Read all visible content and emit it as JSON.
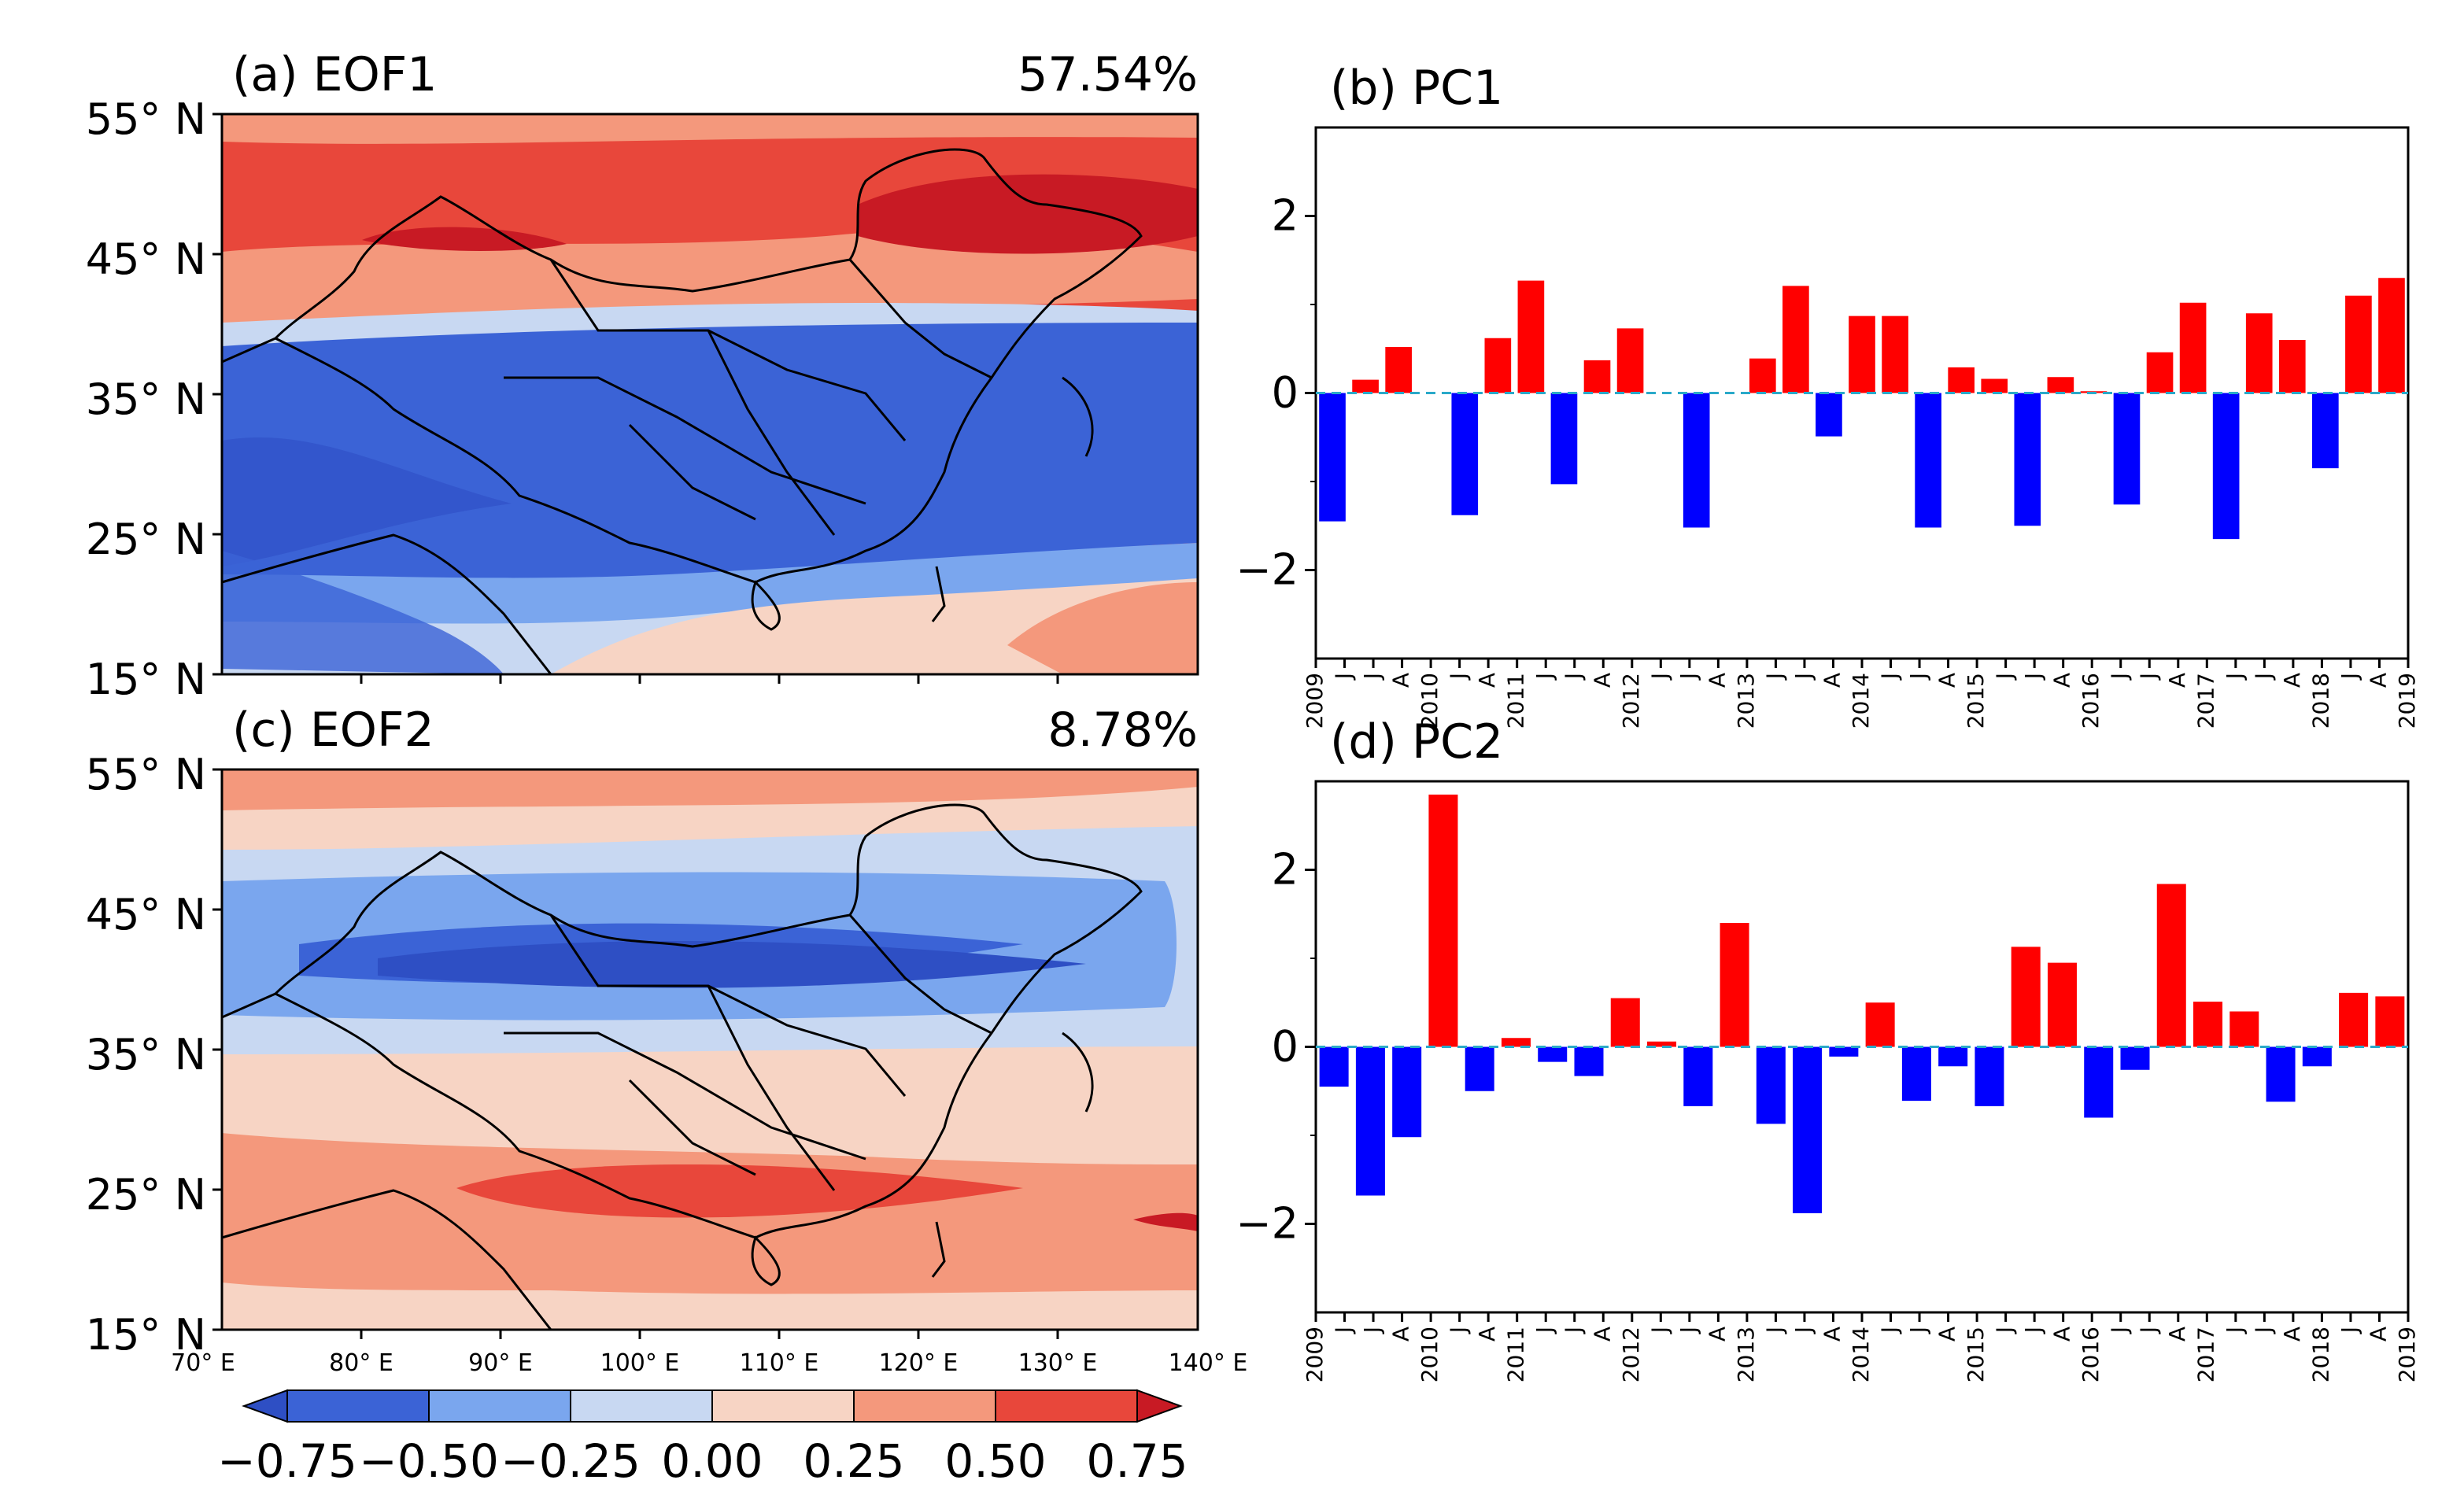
{
  "panels": {
    "a": {
      "title": "(a) EOF1",
      "percent": "57.54%"
    },
    "b": {
      "title": "(b) PC1"
    },
    "c": {
      "title": "(c) EOF2",
      "percent": "8.78%"
    },
    "d": {
      "title": "(d) PC2"
    }
  },
  "map_axes": {
    "lat_labels": [
      "55° N",
      "45° N",
      "35° N",
      "25° N",
      "15° N"
    ],
    "lon_labels": [
      "70° E",
      "80° E",
      "90° E",
      "100° E",
      "110° E",
      "120° E",
      "130° E",
      "140° E"
    ]
  },
  "colorbar": {
    "labels": [
      "−0.75",
      "−0.50",
      "−0.25",
      "0.00",
      "0.25",
      "0.50",
      "0.75"
    ],
    "colors": [
      "#3b63d6",
      "#7aa6ee",
      "#c8d8f2",
      "#f7d4c4",
      "#f4987c",
      "#e8473b"
    ],
    "under_color": "#2e4fc4",
    "over_color": "#c81a24"
  },
  "chart_data": [
    {
      "panel": "b",
      "type": "bar",
      "ylim": [
        -3,
        3
      ],
      "yticks": [
        "2",
        "0",
        "−2"
      ],
      "x_labels": [
        "2009",
        "J",
        "J",
        "A",
        "2010",
        "J",
        "A",
        "2011",
        "J",
        "J",
        "A",
        "2012",
        "J",
        "J",
        "A",
        "2013",
        "J",
        "J",
        "A",
        "2014",
        "J",
        "J",
        "A",
        "2015",
        "J",
        "J",
        "A",
        "2016",
        "J",
        "J",
        "A",
        "2017",
        "J",
        "J",
        "A",
        "2018",
        "J",
        "A",
        "2019"
      ],
      "values": [
        -1.45,
        0.15,
        0.52,
        0.0,
        -1.38,
        0.62,
        1.27,
        -1.03,
        0.37,
        0.73,
        0.0,
        -1.52,
        0.0,
        0.39,
        1.21,
        -0.49,
        0.87,
        0.87,
        -1.52,
        0.29,
        0.16,
        -1.5,
        0.18,
        0.02,
        -1.26,
        0.46,
        1.02,
        -1.65,
        0.9,
        0.6,
        -0.85,
        1.1,
        1.3
      ],
      "positive_color": "#ff0000",
      "negative_color": "#0000ff",
      "zero_line_color": "#2aa9c9"
    },
    {
      "panel": "d",
      "type": "bar",
      "ylim": [
        -3,
        3
      ],
      "yticks": [
        "2",
        "0",
        "−2"
      ],
      "x_labels": [
        "2009",
        "J",
        "J",
        "A",
        "2010",
        "J",
        "A",
        "2011",
        "J",
        "J",
        "A",
        "2012",
        "J",
        "J",
        "A",
        "2013",
        "J",
        "J",
        "A",
        "2014",
        "J",
        "J",
        "A",
        "2015",
        "J",
        "J",
        "A",
        "2016",
        "J",
        "J",
        "A",
        "2017",
        "J",
        "J",
        "A",
        "2018",
        "J",
        "A",
        "2019"
      ],
      "values": [
        -0.45,
        -1.68,
        -1.02,
        2.85,
        -0.5,
        0.1,
        -0.17,
        -0.33,
        0.55,
        0.06,
        -0.67,
        1.4,
        -0.87,
        -1.88,
        -0.11,
        0.5,
        -0.61,
        -0.22,
        -0.67,
        1.13,
        0.95,
        -0.8,
        -0.26,
        1.84,
        0.51,
        0.4,
        -0.62,
        -0.22,
        0.61,
        0.57
      ],
      "positive_color": "#ff0000",
      "negative_color": "#0000ff",
      "zero_line_color": "#2aa9c9"
    }
  ]
}
